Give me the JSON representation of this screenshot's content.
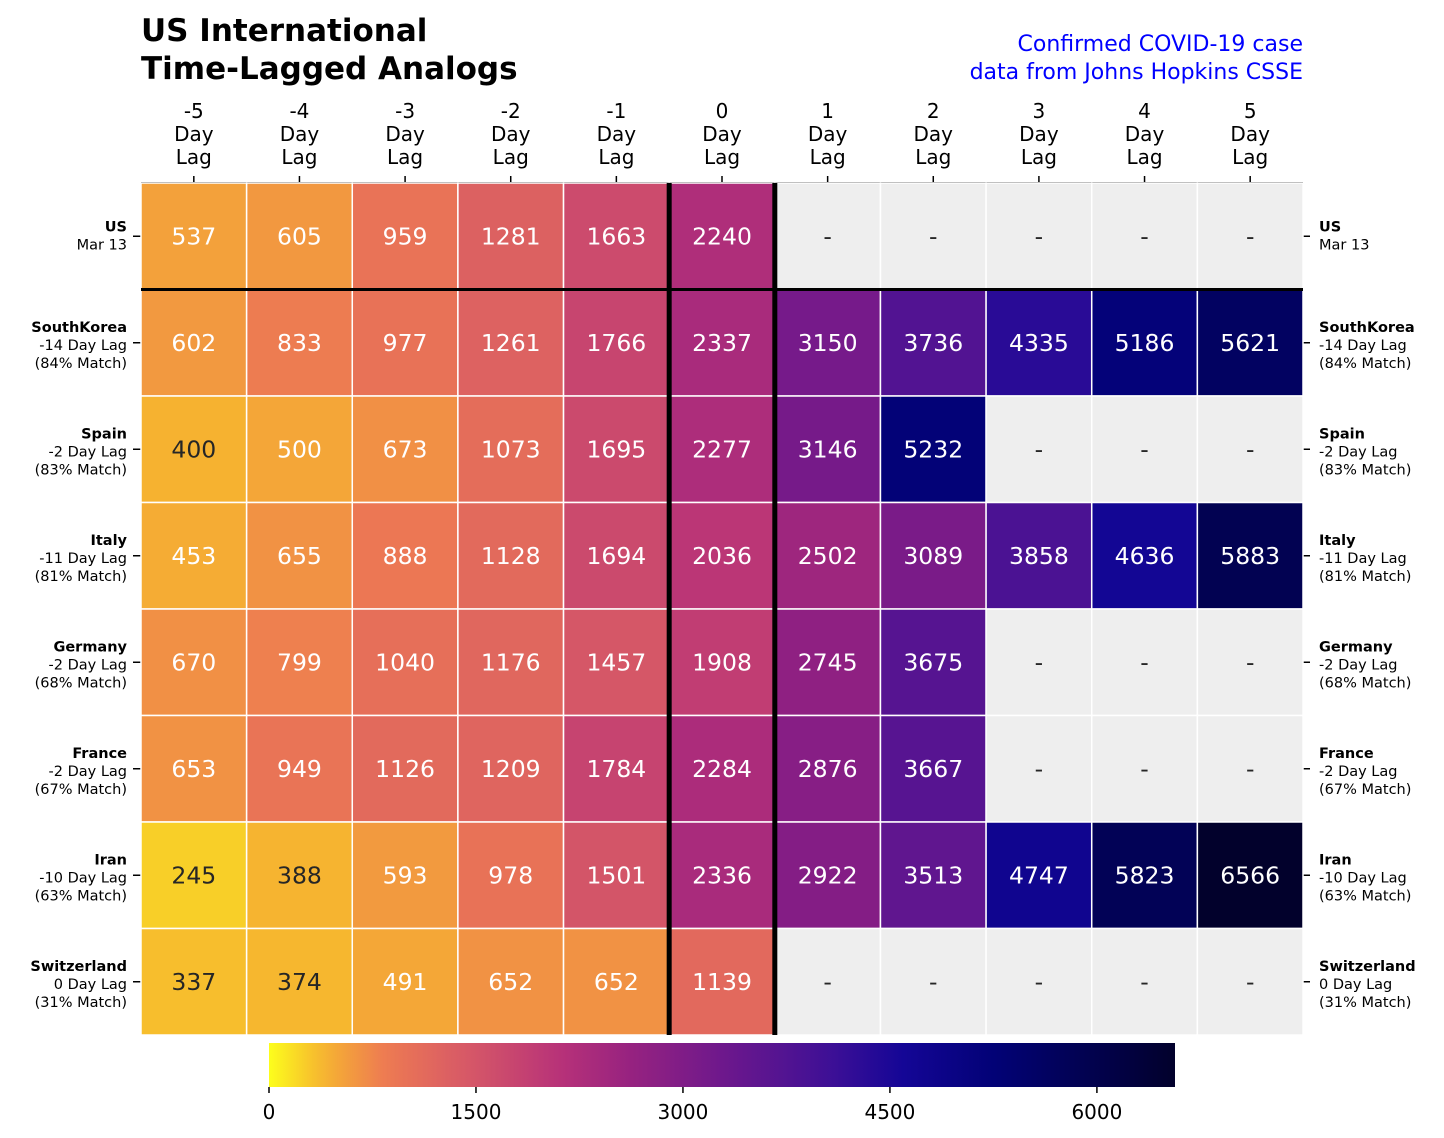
{
  "title_lines": [
    "US International",
    "Time-Lagged Analogs"
  ],
  "source_lines": [
    "Confirmed COVID-19 case",
    "data from Johns Hopkins CSSE"
  ],
  "colors": {
    "source_text": "#0000ff",
    "missing_cell": "#eeeeee",
    "grid_line": "#ffffff",
    "divider": "#000000"
  },
  "chart_data": {
    "type": "heatmap",
    "colormap": "plasma_r",
    "vmin": 0,
    "vmax": 6566,
    "columns": [
      "-5",
      "-4",
      "-3",
      "-2",
      "-1",
      "0",
      "1",
      "2",
      "3",
      "4",
      "5"
    ],
    "column_suffix": [
      "Day",
      "Lag"
    ],
    "missing_label": "-",
    "rows": [
      {
        "name": "US",
        "lag": "Mar 13",
        "match": "",
        "values": [
          537,
          605,
          959,
          1281,
          1663,
          2240,
          null,
          null,
          null,
          null,
          null
        ]
      },
      {
        "name": "SouthKorea",
        "lag": "-14 Day Lag",
        "match": "(84% Match)",
        "values": [
          602,
          833,
          977,
          1261,
          1766,
          2337,
          3150,
          3736,
          4335,
          5186,
          5621
        ]
      },
      {
        "name": "Spain",
        "lag": "-2 Day Lag",
        "match": "(83% Match)",
        "values": [
          400,
          500,
          673,
          1073,
          1695,
          2277,
          3146,
          5232,
          null,
          null,
          null
        ]
      },
      {
        "name": "Italy",
        "lag": "-11 Day Lag",
        "match": "(81% Match)",
        "values": [
          453,
          655,
          888,
          1128,
          1694,
          2036,
          2502,
          3089,
          3858,
          4636,
          5883
        ]
      },
      {
        "name": "Germany",
        "lag": "-2 Day Lag",
        "match": "(68% Match)",
        "values": [
          670,
          799,
          1040,
          1176,
          1457,
          1908,
          2745,
          3675,
          null,
          null,
          null
        ]
      },
      {
        "name": "France",
        "lag": "-2 Day Lag",
        "match": "(67% Match)",
        "values": [
          653,
          949,
          1126,
          1209,
          1784,
          2284,
          2876,
          3667,
          null,
          null,
          null
        ]
      },
      {
        "name": "Iran",
        "lag": "-10 Day Lag",
        "match": "(63% Match)",
        "values": [
          245,
          388,
          593,
          978,
          1501,
          2336,
          2922,
          3513,
          4747,
          5823,
          6566
        ]
      },
      {
        "name": "Switzerland",
        "lag": "0 Day Lag",
        "match": "(31% Match)",
        "values": [
          337,
          374,
          491,
          652,
          652,
          1139,
          null,
          null,
          null,
          null,
          null
        ]
      }
    ],
    "colorbar": {
      "ticks": [
        0,
        1500,
        3000,
        4500,
        6000
      ],
      "range": [
        0,
        6566
      ]
    }
  }
}
